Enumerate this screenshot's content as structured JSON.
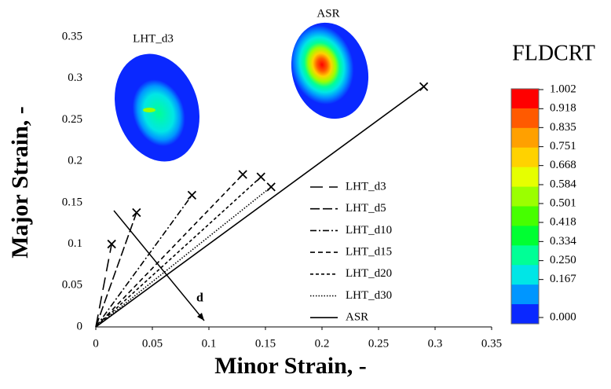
{
  "chart_data": {
    "type": "line",
    "xlabel": "Minor Strain, -",
    "ylabel": "Major Strain, -",
    "xlim": [
      0,
      0.35
    ],
    "ylim": [
      0,
      0.35
    ],
    "xticks": [
      0,
      0.05,
      0.1,
      0.15,
      0.2,
      0.25,
      0.3,
      0.35
    ],
    "yticks": [
      0,
      0.05,
      0.1,
      0.15,
      0.2,
      0.25,
      0.3,
      0.35
    ],
    "series": [
      {
        "name": "LHT_d3",
        "color": "#000000",
        "x": [
          0,
          0.014
        ],
        "values": [
          0,
          0.1
        ]
      },
      {
        "name": "LHT_d5",
        "color": "#000000",
        "x": [
          0,
          0.036
        ],
        "values": [
          0,
          0.138
        ]
      },
      {
        "name": "LHT_d10",
        "color": "#000000",
        "x": [
          0,
          0.085
        ],
        "values": [
          0,
          0.159
        ]
      },
      {
        "name": "LHT_d15",
        "color": "#000000",
        "x": [
          0,
          0.13
        ],
        "values": [
          0,
          0.184
        ]
      },
      {
        "name": "LHT_d20",
        "color": "#000000",
        "x": [
          0,
          0.146
        ],
        "values": [
          0,
          0.181
        ]
      },
      {
        "name": "LHT_d30",
        "color": "#000000",
        "x": [
          0,
          0.155
        ],
        "values": [
          0,
          0.169
        ]
      },
      {
        "name": "ASR",
        "color": "#000000",
        "x": [
          0,
          0.29
        ],
        "values": [
          0,
          0.29
        ]
      }
    ],
    "annotations": [
      "LHT_d3",
      "ASR",
      "d"
    ],
    "colorbar": {
      "title": "FLDCRT",
      "colors": [
        "#ff0000",
        "#ff5a00",
        "#ffa000",
        "#ffd200",
        "#e6ff00",
        "#9bff00",
        "#46ff00",
        "#00ff32",
        "#00ff96",
        "#00e6e6",
        "#0096ff",
        "#0a28ff"
      ],
      "ticks": [
        1.002,
        0.918,
        0.835,
        0.751,
        0.668,
        0.584,
        0.501,
        0.418,
        0.334,
        {
          "value": 0.25,
          "label": "0.250"
        },
        0.167,
        {
          "value": 0,
          "label": "0.000"
        }
      ]
    }
  }
}
